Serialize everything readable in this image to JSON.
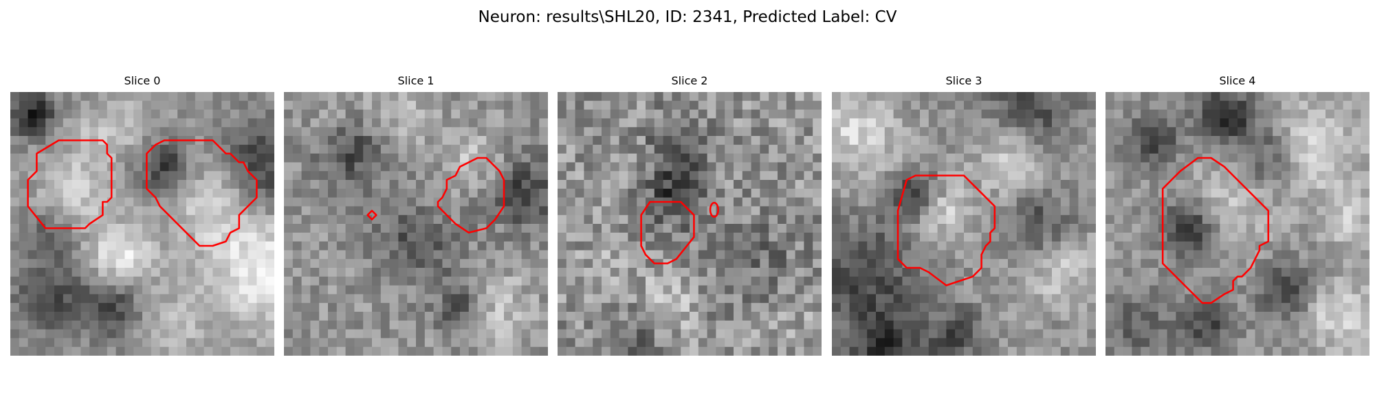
{
  "figure": {
    "title": "Neuron: results\\SHL20, ID: 2341, Predicted Label: CV"
  },
  "panels": [
    {
      "title": "Slice 0"
    },
    {
      "title": "Slice 1"
    },
    {
      "title": "Slice 2"
    },
    {
      "title": "Slice 3"
    },
    {
      "title": "Slice 4"
    }
  ],
  "colors": {
    "background": "#ffffff",
    "contour": "#ff0000",
    "colormap": "gray"
  }
}
